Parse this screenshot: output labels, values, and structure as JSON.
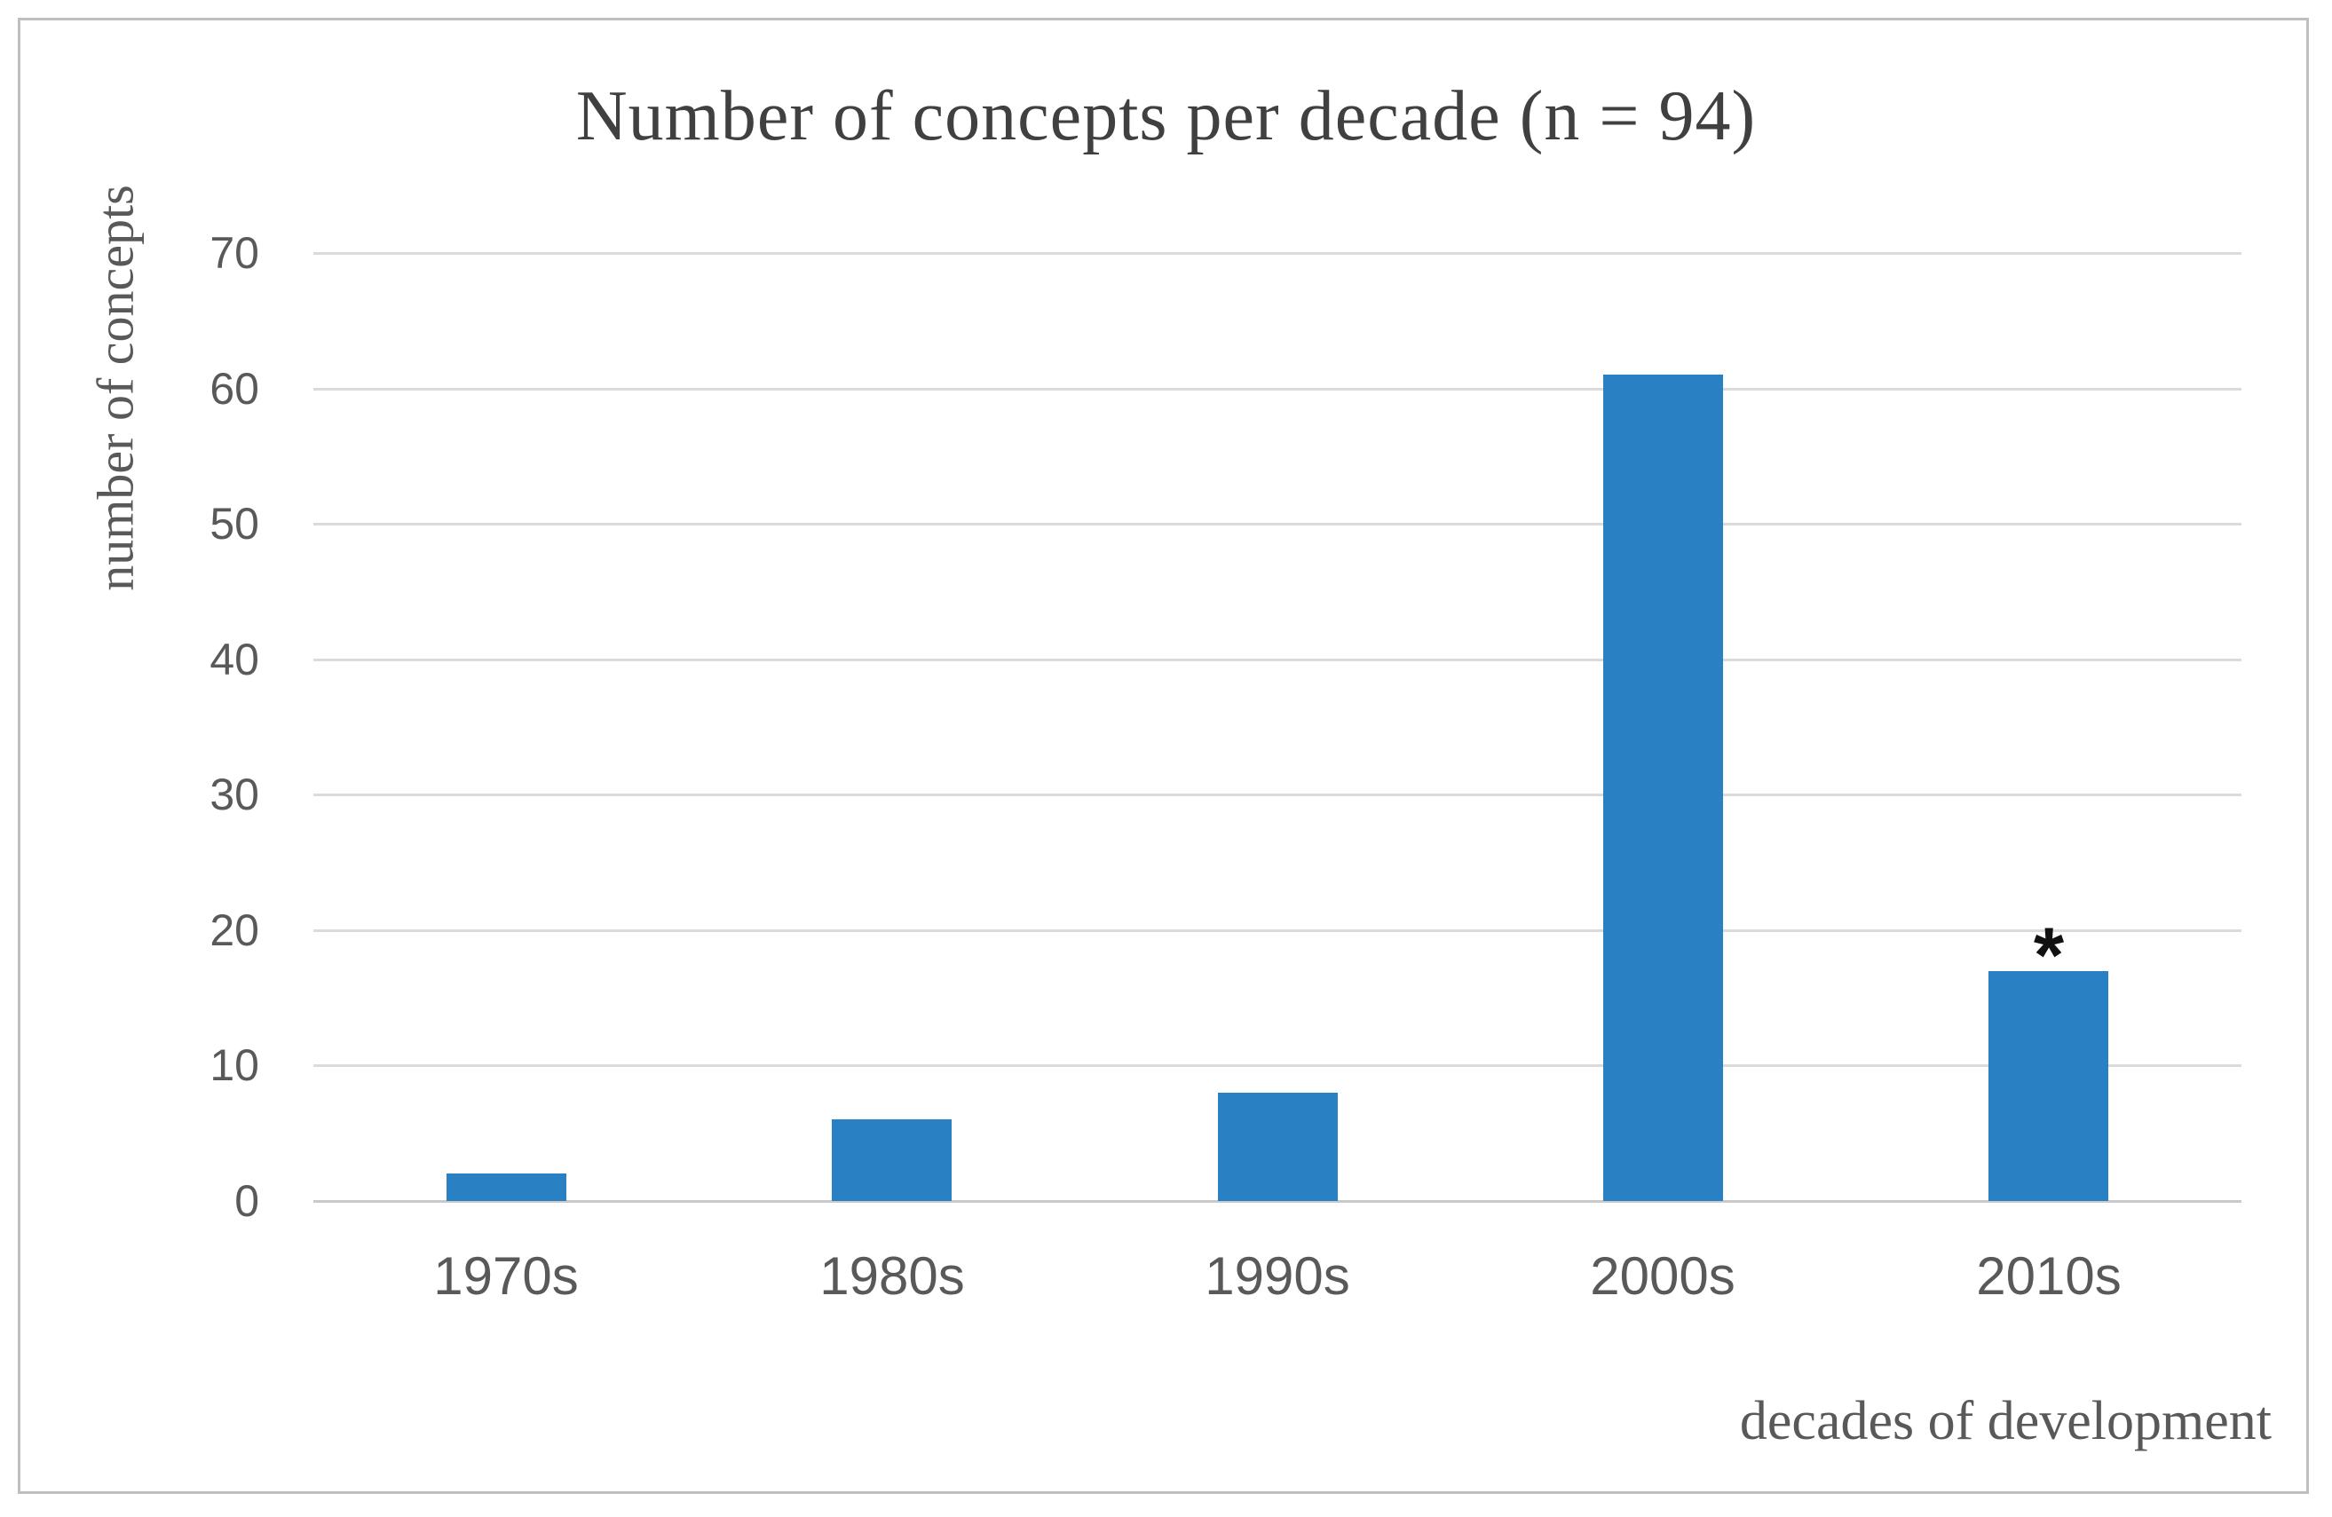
{
  "chart_data": {
    "type": "bar",
    "title": "Number of concepts per decade (n = 94)",
    "categories": [
      "1970s",
      "1980s",
      "1990s",
      "2000s",
      "2010s"
    ],
    "values": [
      2,
      6,
      8,
      61,
      17
    ],
    "xlabel": "decades of development",
    "ylabel": "number of concepts",
    "ylim": [
      0,
      70
    ],
    "yticks": [
      0,
      10,
      20,
      30,
      40,
      50,
      60,
      70
    ],
    "grid": "horizontal-only",
    "legend": "none",
    "annotations": [
      {
        "category": "2010s",
        "text": "*",
        "position": "above-bar"
      }
    ]
  },
  "colors": {
    "bar": "#2980c3",
    "gridline": "#dbdbdb",
    "axis_line": "#c9c9c9",
    "title_text": "#404040",
    "label_text": "#595959",
    "frame_border": "#bfbfbf",
    "annotation_text": "#111111"
  }
}
